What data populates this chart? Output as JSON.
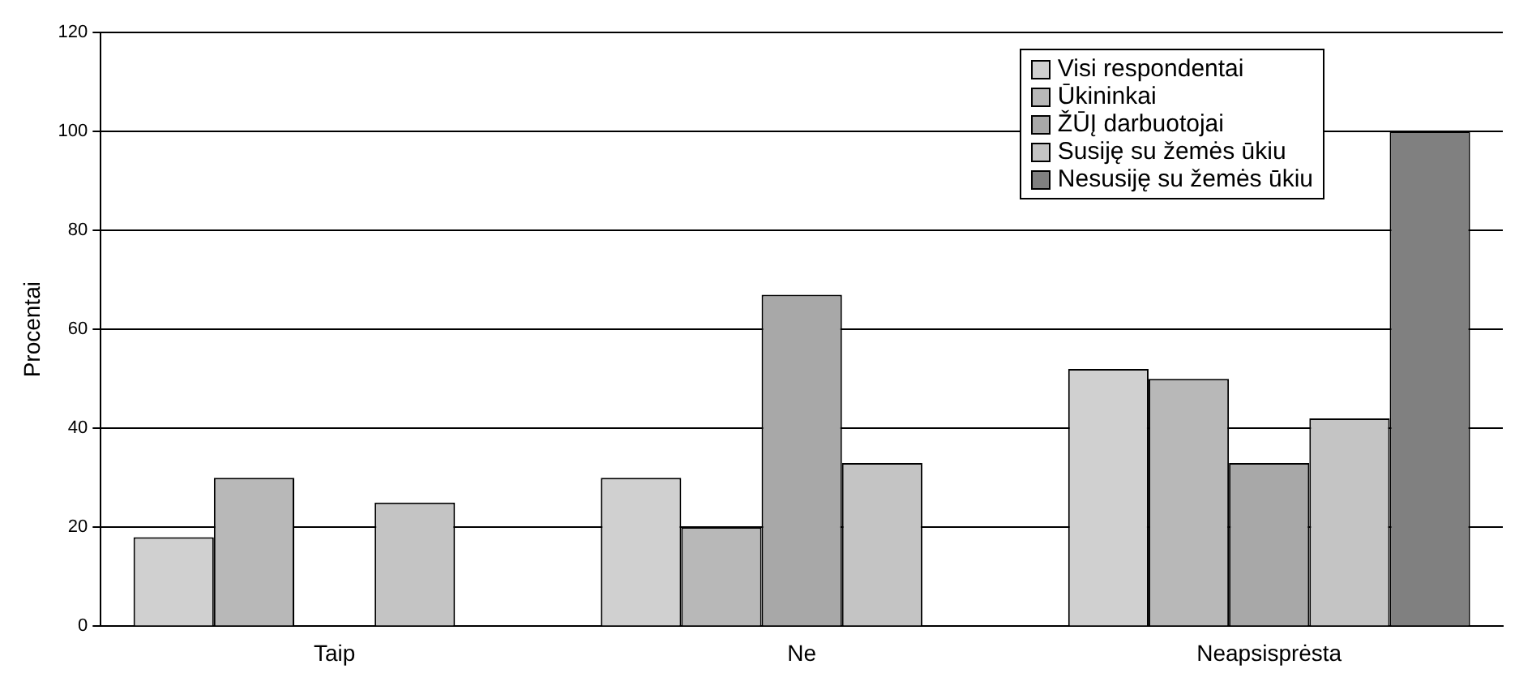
{
  "chart_data": {
    "type": "bar",
    "ylabel": "Procentai",
    "categories": [
      "Taip",
      "Ne",
      "Neapsisprėsta"
    ],
    "series": [
      {
        "name": "Visi respondentai",
        "color": "#d0d0d0",
        "values": [
          18,
          30,
          52
        ]
      },
      {
        "name": "Ūkininkai",
        "color": "#b8b8b8",
        "values": [
          30,
          20,
          50
        ]
      },
      {
        "name": "ŽŪĮ darbuotojai",
        "color": "#a8a8a8",
        "values": [
          null,
          67,
          33
        ]
      },
      {
        "name": "Susiję su žemės ūkiu",
        "color": "#c4c4c4",
        "values": [
          25,
          33,
          42
        ]
      },
      {
        "name": "Nesusiję su žemės  ūkiu",
        "color": "#808080",
        "values": [
          null,
          null,
          100
        ]
      }
    ],
    "ylim": [
      0,
      120
    ],
    "yticks": [
      0,
      20,
      40,
      60,
      80,
      100,
      120
    ],
    "grid": "y",
    "legend": "top right"
  }
}
